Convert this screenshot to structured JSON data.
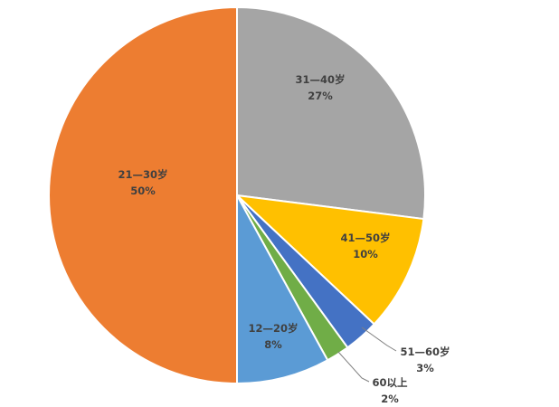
{
  "chart_data": {
    "type": "pie",
    "title": "",
    "start_angle_deg": 0,
    "direction": "clockwise",
    "slices": [
      {
        "label": "31—40岁",
        "value": 27,
        "percent_text": "27%",
        "color": "#a5a5a5"
      },
      {
        "label": "41—50岁",
        "value": 10,
        "percent_text": "10%",
        "color": "#ffc000"
      },
      {
        "label": "51—60岁",
        "value": 3,
        "percent_text": "3%",
        "color": "#4472c4"
      },
      {
        "label": "60以上",
        "value": 2,
        "percent_text": "2%",
        "color": "#70ad47"
      },
      {
        "label": "12—20岁",
        "value": 8,
        "percent_text": "8%",
        "color": "#5b9bd5"
      },
      {
        "label": "21—30岁",
        "value": 50,
        "percent_text": "50%",
        "color": "#ed7d31"
      }
    ],
    "legend": "none",
    "data_labels": "category-and-percent"
  }
}
